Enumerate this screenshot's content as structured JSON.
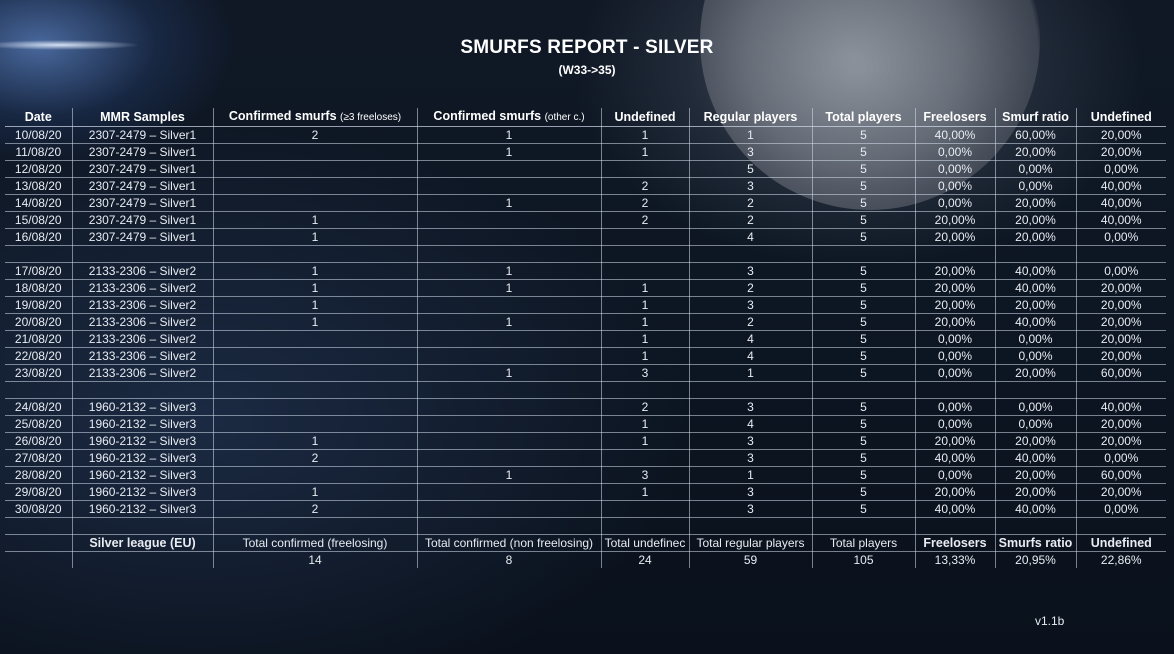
{
  "report": {
    "title": "SMURFS REPORT - SILVER",
    "subtitle": "(W33->35)",
    "version": "v1.1b"
  },
  "headers": {
    "date": "Date",
    "mmr": "MMR Samples",
    "confirmed_freelose": "Confirmed smurfs",
    "confirmed_freelose_note": "(≥3 freeloses)",
    "confirmed_other": "Confirmed smurfs",
    "confirmed_other_note": "(other c.)",
    "undefined": "Undefined",
    "regular": "Regular players",
    "total": "Total players",
    "freelosers": "Freelosers",
    "smurf_ratio": "Smurf ratio",
    "undefined_ratio": "Undefined"
  },
  "rows": [
    {
      "date": "10/08/20",
      "mmr": "2307-2479 – Silver1",
      "cf": "2",
      "co": "1",
      "und": "1",
      "reg": "1",
      "tot": "5",
      "fl": "40,00%",
      "sr": "60,00%",
      "ur": "20,00%"
    },
    {
      "date": "11/08/20",
      "mmr": "2307-2479 – Silver1",
      "cf": "",
      "co": "1",
      "und": "1",
      "reg": "3",
      "tot": "5",
      "fl": "0,00%",
      "sr": "20,00%",
      "ur": "20,00%"
    },
    {
      "date": "12/08/20",
      "mmr": "2307-2479 – Silver1",
      "cf": "",
      "co": "",
      "und": "",
      "reg": "5",
      "tot": "5",
      "fl": "0,00%",
      "sr": "0,00%",
      "ur": "0,00%"
    },
    {
      "date": "13/08/20",
      "mmr": "2307-2479 – Silver1",
      "cf": "",
      "co": "",
      "und": "2",
      "reg": "3",
      "tot": "5",
      "fl": "0,00%",
      "sr": "0,00%",
      "ur": "40,00%"
    },
    {
      "date": "14/08/20",
      "mmr": "2307-2479 – Silver1",
      "cf": "",
      "co": "1",
      "und": "2",
      "reg": "2",
      "tot": "5",
      "fl": "0,00%",
      "sr": "20,00%",
      "ur": "40,00%"
    },
    {
      "date": "15/08/20",
      "mmr": "2307-2479 – Silver1",
      "cf": "1",
      "co": "",
      "und": "2",
      "reg": "2",
      "tot": "5",
      "fl": "20,00%",
      "sr": "20,00%",
      "ur": "40,00%"
    },
    {
      "date": "16/08/20",
      "mmr": "2307-2479 – Silver1",
      "cf": "1",
      "co": "",
      "und": "",
      "reg": "4",
      "tot": "5",
      "fl": "20,00%",
      "sr": "20,00%",
      "ur": "0,00%"
    },
    {
      "spacer": true
    },
    {
      "date": "17/08/20",
      "mmr": "2133-2306 – Silver2",
      "cf": "1",
      "co": "1",
      "und": "",
      "reg": "3",
      "tot": "5",
      "fl": "20,00%",
      "sr": "40,00%",
      "ur": "0,00%"
    },
    {
      "date": "18/08/20",
      "mmr": "2133-2306 – Silver2",
      "cf": "1",
      "co": "1",
      "und": "1",
      "reg": "2",
      "tot": "5",
      "fl": "20,00%",
      "sr": "40,00%",
      "ur": "20,00%"
    },
    {
      "date": "19/08/20",
      "mmr": "2133-2306 – Silver2",
      "cf": "1",
      "co": "",
      "und": "1",
      "reg": "3",
      "tot": "5",
      "fl": "20,00%",
      "sr": "20,00%",
      "ur": "20,00%"
    },
    {
      "date": "20/08/20",
      "mmr": "2133-2306 – Silver2",
      "cf": "1",
      "co": "1",
      "und": "1",
      "reg": "2",
      "tot": "5",
      "fl": "20,00%",
      "sr": "40,00%",
      "ur": "20,00%"
    },
    {
      "date": "21/08/20",
      "mmr": "2133-2306 – Silver2",
      "cf": "",
      "co": "",
      "und": "1",
      "reg": "4",
      "tot": "5",
      "fl": "0,00%",
      "sr": "0,00%",
      "ur": "20,00%"
    },
    {
      "date": "22/08/20",
      "mmr": "2133-2306 – Silver2",
      "cf": "",
      "co": "",
      "und": "1",
      "reg": "4",
      "tot": "5",
      "fl": "0,00%",
      "sr": "0,00%",
      "ur": "20,00%"
    },
    {
      "date": "23/08/20",
      "mmr": "2133-2306 – Silver2",
      "cf": "",
      "co": "1",
      "und": "3",
      "reg": "1",
      "tot": "5",
      "fl": "0,00%",
      "sr": "20,00%",
      "ur": "60,00%"
    },
    {
      "spacer": true
    },
    {
      "date": "24/08/20",
      "mmr": "1960-2132 – Silver3",
      "cf": "",
      "co": "",
      "und": "2",
      "reg": "3",
      "tot": "5",
      "fl": "0,00%",
      "sr": "0,00%",
      "ur": "40,00%"
    },
    {
      "date": "25/08/20",
      "mmr": "1960-2132 – Silver3",
      "cf": "",
      "co": "",
      "und": "1",
      "reg": "4",
      "tot": "5",
      "fl": "0,00%",
      "sr": "0,00%",
      "ur": "20,00%"
    },
    {
      "date": "26/08/20",
      "mmr": "1960-2132 – Silver3",
      "cf": "1",
      "co": "",
      "und": "1",
      "reg": "3",
      "tot": "5",
      "fl": "20,00%",
      "sr": "20,00%",
      "ur": "20,00%"
    },
    {
      "date": "27/08/20",
      "mmr": "1960-2132 – Silver3",
      "cf": "2",
      "co": "",
      "und": "",
      "reg": "3",
      "tot": "5",
      "fl": "40,00%",
      "sr": "40,00%",
      "ur": "0,00%"
    },
    {
      "date": "28/08/20",
      "mmr": "1960-2132 – Silver3",
      "cf": "",
      "co": "1",
      "und": "3",
      "reg": "1",
      "tot": "5",
      "fl": "0,00%",
      "sr": "20,00%",
      "ur": "60,00%"
    },
    {
      "date": "29/08/20",
      "mmr": "1960-2132 – Silver3",
      "cf": "1",
      "co": "",
      "und": "1",
      "reg": "3",
      "tot": "5",
      "fl": "20,00%",
      "sr": "20,00%",
      "ur": "20,00%"
    },
    {
      "date": "30/08/20",
      "mmr": "1960-2132 – Silver3",
      "cf": "2",
      "co": "",
      "und": "",
      "reg": "3",
      "tot": "5",
      "fl": "40,00%",
      "sr": "40,00%",
      "ur": "0,00%"
    }
  ],
  "footer_labels": {
    "league": "Silver league (EU)",
    "total_confirmed_freelosing": "Total confirmed (freelosing)",
    "total_confirmed_non_freelosing": "Total confirmed (non freelosing)",
    "total_undefined": "Total undefinec",
    "total_regular": "Total regular players",
    "total_players": "Total players",
    "freelosers": "Freelosers",
    "smurfs_ratio": "Smurfs ratio",
    "undefined": "Undefined"
  },
  "footer_values": {
    "total_confirmed_freelosing": "14",
    "total_confirmed_non_freelosing": "8",
    "total_undefined": "24",
    "total_regular": "59",
    "total_players": "105",
    "freelosers": "13,33%",
    "smurfs_ratio": "20,95%",
    "undefined": "22,86%"
  }
}
